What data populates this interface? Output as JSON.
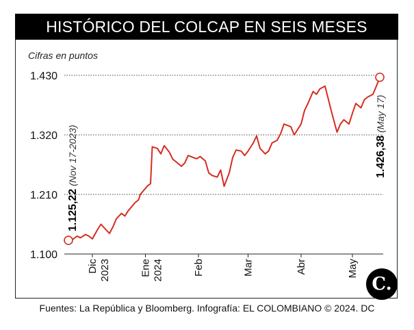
{
  "title": "HISTÓRICO DEL COLCAP EN SEIS MESES",
  "subtitle": "Cifras en puntos",
  "source": "Fuentes: La República y Bloomberg. Infografía: EL COLOMBIANO © 2024. DC",
  "logo_text": "C.",
  "colors": {
    "line": "#d62b1f",
    "title_bg": "#000000",
    "text": "#111111"
  },
  "annotations": {
    "start": {
      "value": "1.125,22",
      "date": "(Nov 17-2023)"
    },
    "end": {
      "value": "1.426,38",
      "date": "(May 17)"
    }
  },
  "chart_data": {
    "type": "line",
    "title": "HISTÓRICO DEL COLCAP EN SEIS MESES",
    "ylabel": "Cifras en puntos",
    "xlabel": "",
    "ylim": [
      1100,
      1430
    ],
    "yticks": [
      1100,
      1210,
      1320,
      1430
    ],
    "ytick_labels": [
      "1.100",
      "1.210",
      "1.320",
      "1.430"
    ],
    "xlim": [
      "2023-11-17",
      "2024-05-17"
    ],
    "xticks": [
      {
        "date": "2023-12-01",
        "label": "Dic",
        "sub": "2023"
      },
      {
        "date": "2024-01-01",
        "label": "Ene",
        "sub": "2024"
      },
      {
        "date": "2024-02-01",
        "label": "Feb",
        "sub": ""
      },
      {
        "date": "2024-03-01",
        "label": "Mar",
        "sub": ""
      },
      {
        "date": "2024-04-01",
        "label": "Abr",
        "sub": ""
      },
      {
        "date": "2024-05-01",
        "label": "May",
        "sub": ""
      }
    ],
    "grid": "horizontal-dotted",
    "series": [
      {
        "x": [
          "2023-11-17",
          "2023-11-20",
          "2023-11-22",
          "2023-11-24",
          "2023-11-27",
          "2023-11-29",
          "2023-12-01",
          "2023-12-04",
          "2023-12-06",
          "2023-12-08",
          "2023-12-11",
          "2023-12-13",
          "2023-12-15",
          "2023-12-18",
          "2023-12-20",
          "2023-12-22",
          "2023-12-26",
          "2023-12-28",
          "2023-12-29",
          "2024-01-02",
          "2024-01-04",
          "2024-01-05",
          "2024-01-08",
          "2024-01-10",
          "2024-01-12",
          "2024-01-15",
          "2024-01-17",
          "2024-01-19",
          "2024-01-22",
          "2024-01-24",
          "2024-01-26",
          "2024-01-29",
          "2024-01-31",
          "2024-02-02",
          "2024-02-05",
          "2024-02-07",
          "2024-02-09",
          "2024-02-12",
          "2024-02-14",
          "2024-02-16",
          "2024-02-19",
          "2024-02-21",
          "2024-02-23",
          "2024-02-26",
          "2024-02-28",
          "2024-03-01",
          "2024-03-04",
          "2024-03-06",
          "2024-03-08",
          "2024-03-11",
          "2024-03-13",
          "2024-03-15",
          "2024-03-18",
          "2024-03-20",
          "2024-03-22",
          "2024-03-26",
          "2024-03-28",
          "2024-04-01",
          "2024-04-03",
          "2024-04-05",
          "2024-04-08",
          "2024-04-10",
          "2024-04-12",
          "2024-04-15",
          "2024-04-17",
          "2024-04-19",
          "2024-04-22",
          "2024-04-24",
          "2024-04-26",
          "2024-04-29",
          "2024-05-01",
          "2024-05-03",
          "2024-05-06",
          "2024-05-08",
          "2024-05-10",
          "2024-05-13",
          "2024-05-15",
          "2024-05-17"
        ],
        "values": [
          1125.22,
          1128,
          1133,
          1130,
          1136,
          1133,
          1128,
          1145,
          1155,
          1148,
          1138,
          1150,
          1165,
          1175,
          1170,
          1180,
          1195,
          1200,
          1210,
          1225,
          1230,
          1298,
          1295,
          1285,
          1300,
          1288,
          1275,
          1270,
          1262,
          1268,
          1282,
          1278,
          1276,
          1280,
          1272,
          1250,
          1245,
          1242,
          1255,
          1225,
          1250,
          1278,
          1292,
          1290,
          1282,
          1290,
          1305,
          1318,
          1295,
          1285,
          1290,
          1305,
          1310,
          1322,
          1340,
          1335,
          1320,
          1340,
          1365,
          1378,
          1400,
          1395,
          1405,
          1410,
          1385,
          1360,
          1325,
          1340,
          1348,
          1340,
          1360,
          1378,
          1370,
          1385,
          1390,
          1395,
          1410,
          1426.38
        ]
      }
    ]
  }
}
